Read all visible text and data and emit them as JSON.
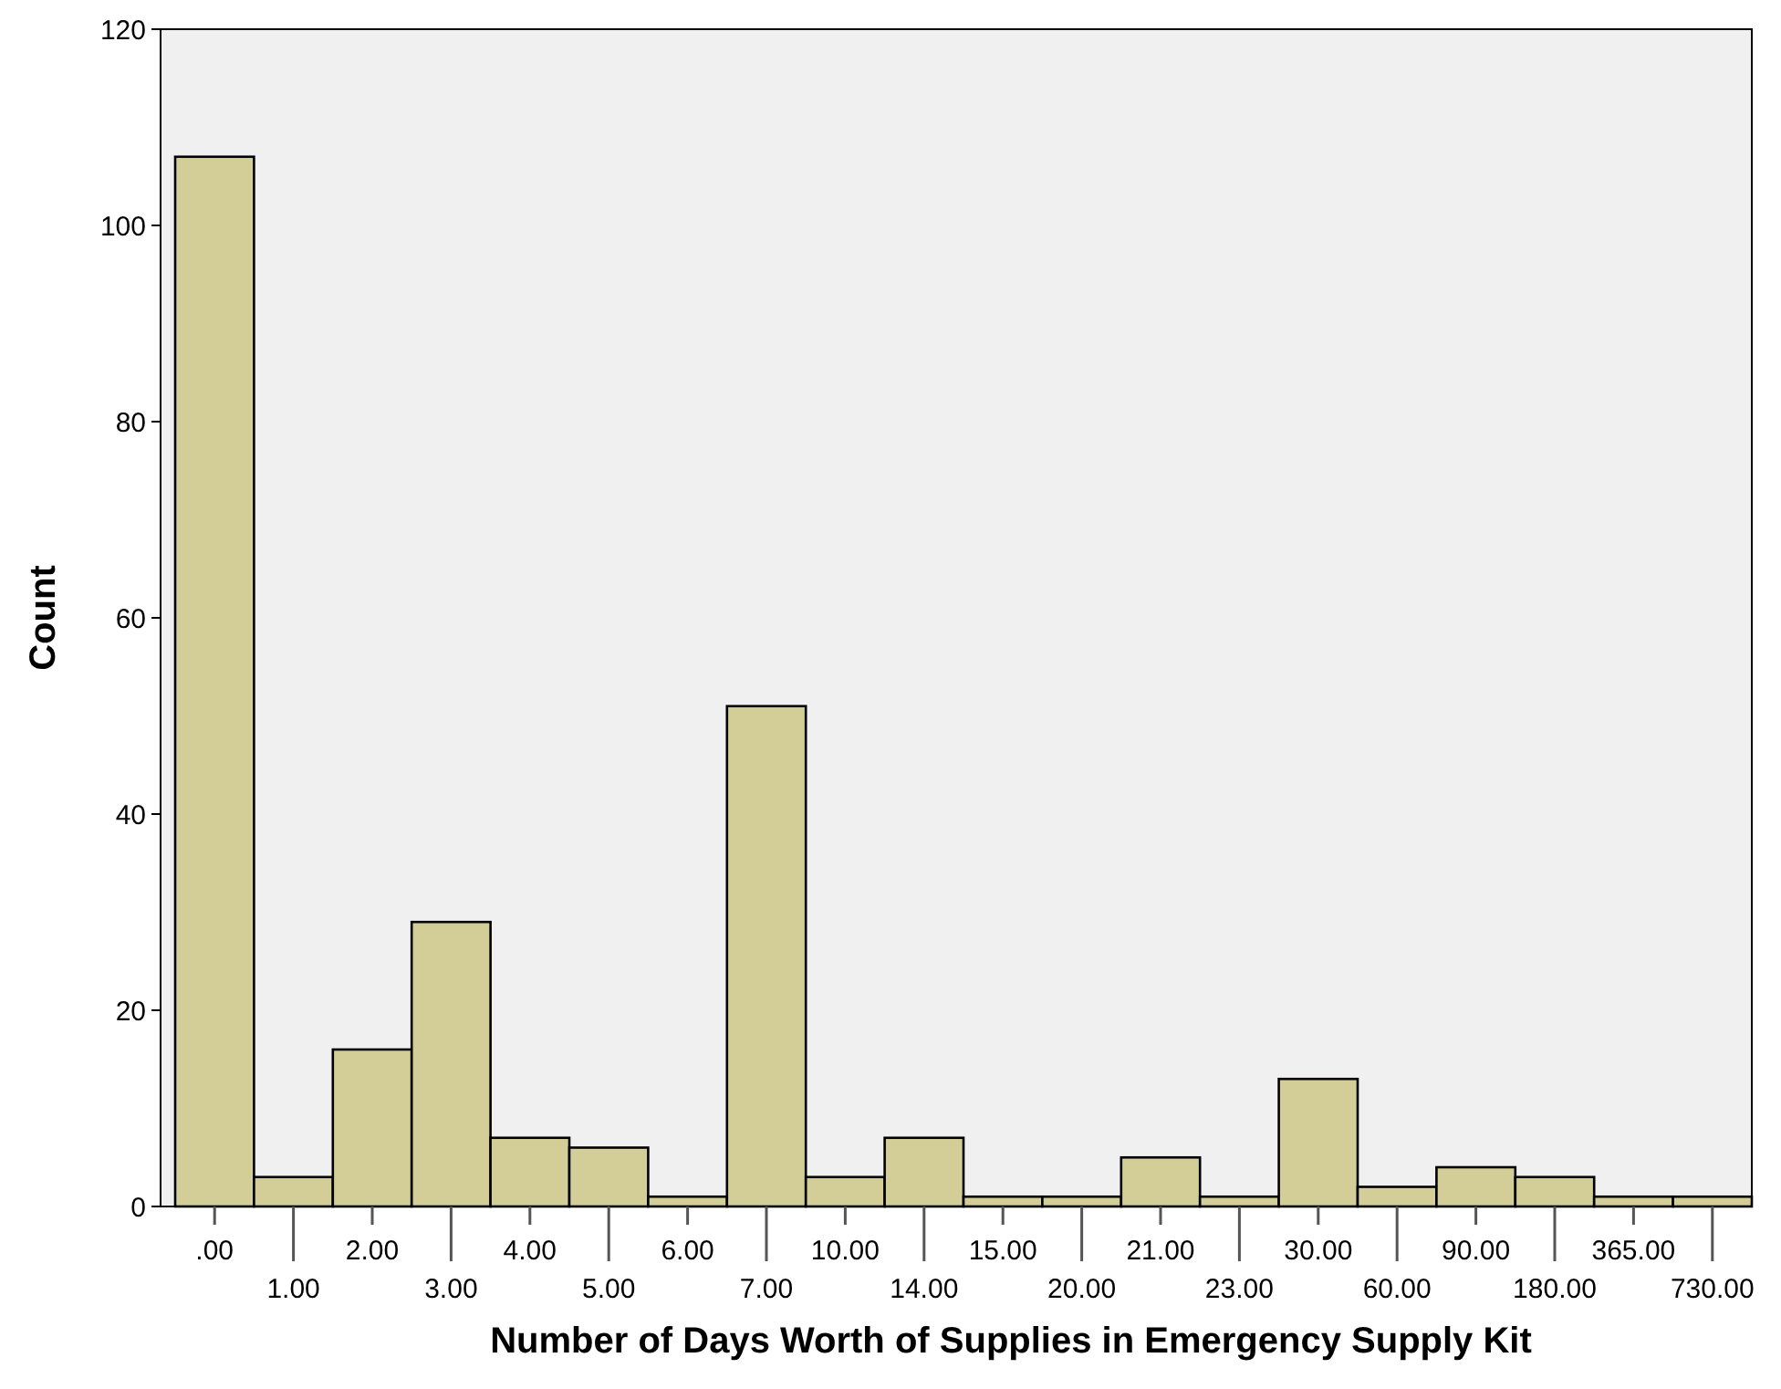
{
  "chart_data": {
    "type": "bar",
    "xlabel": "Number of Days Worth of Supplies in Emergency Supply Kit",
    "ylabel": "Count",
    "categories": [
      ".00",
      "1.00",
      "2.00",
      "3.00",
      "4.00",
      "5.00",
      "6.00",
      "7.00",
      "10.00",
      "14.00",
      "15.00",
      "20.00",
      "21.00",
      "23.00",
      "30.00",
      "60.00",
      "90.00",
      "180.00",
      "365.00",
      "730.00"
    ],
    "values": [
      107,
      3,
      16,
      29,
      7,
      6,
      1,
      51,
      3,
      7,
      1,
      1,
      5,
      1,
      13,
      2,
      4,
      3,
      1,
      1
    ],
    "color": "#d3ce97",
    "ylim": [
      0,
      120
    ],
    "yticks": [
      0,
      20,
      40,
      60,
      80,
      100,
      120
    ]
  }
}
